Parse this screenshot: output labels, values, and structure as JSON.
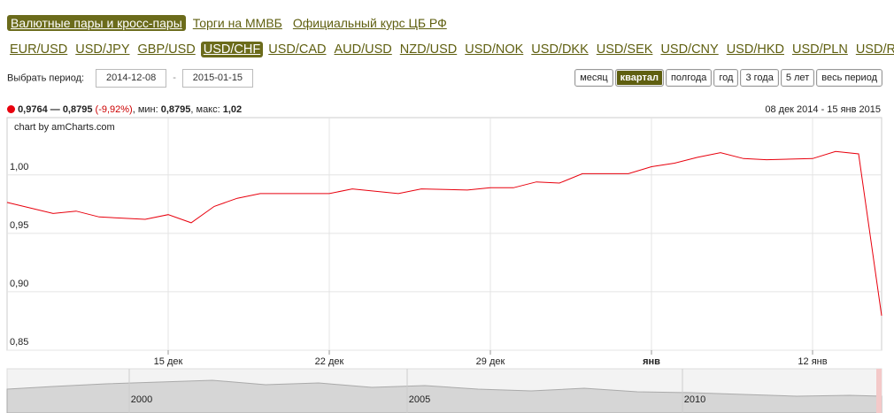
{
  "tabs": {
    "items": [
      "Валютные пары и кросс-пары",
      "Торги на ММВБ",
      "Официальный курс ЦБ РФ"
    ],
    "active": 0
  },
  "pairs": {
    "items": [
      "EUR/USD",
      "USD/JPY",
      "GBP/USD",
      "USD/CHF",
      "USD/CAD",
      "AUD/USD",
      "NZD/USD",
      "USD/NOK",
      "USD/DKK",
      "USD/SEK",
      "USD/CNY",
      "USD/HKD",
      "USD/PLN",
      "USD/RUR"
    ],
    "active": 3
  },
  "period": {
    "label": "Выбрать период:",
    "from": "2014-12-08",
    "separator": "-",
    "to": "2015-01-15"
  },
  "ranges": {
    "items": [
      "месяц",
      "квартал",
      "полгода",
      "год",
      "3 года",
      "5 лет",
      "весь период"
    ],
    "active": 1
  },
  "summary": {
    "range": "0,9764 — 0,8795",
    "change": "(-9,92%)",
    "min_label": ", мин:",
    "min": "0,8795",
    "max_label": ", макс:",
    "max": "1,02",
    "dates": "08 дек 2014 - 15 янв 2015"
  },
  "chart_data": {
    "type": "line",
    "credit": "chart by amCharts.com",
    "color": "#e8000d",
    "grid": true,
    "x": [
      "2014-12-08",
      "2014-12-10",
      "2014-12-11",
      "2014-12-12",
      "2014-12-14",
      "2014-12-15",
      "2014-12-16",
      "2014-12-17",
      "2014-12-18",
      "2014-12-19",
      "2014-12-22",
      "2014-12-23",
      "2014-12-25",
      "2014-12-26",
      "2014-12-28",
      "2014-12-29",
      "2014-12-30",
      "2014-12-31",
      "2015-01-01",
      "2015-01-02",
      "2015-01-04",
      "2015-01-05",
      "2015-01-06",
      "2015-01-07",
      "2015-01-08",
      "2015-01-09",
      "2015-01-10",
      "2015-01-12",
      "2015-01-13",
      "2015-01-14",
      "2015-01-15"
    ],
    "values": [
      0.9764,
      0.967,
      0.969,
      0.964,
      0.962,
      0.966,
      0.959,
      0.973,
      0.98,
      0.984,
      0.984,
      0.988,
      0.984,
      0.988,
      0.987,
      0.989,
      0.989,
      0.994,
      0.993,
      1.001,
      1.001,
      1.007,
      1.01,
      1.015,
      1.019,
      1.014,
      1.013,
      1.014,
      1.02,
      1.018,
      0.8795
    ],
    "xlim": [
      "2014-12-08",
      "2015-01-15"
    ],
    "xticks": [
      {
        "value": "2014-12-15",
        "label": "15 дек"
      },
      {
        "value": "2014-12-22",
        "label": "22 дек"
      },
      {
        "value": "2014-12-29",
        "label": "29 дек"
      },
      {
        "value": "2015-01-05",
        "label": "янв"
      },
      {
        "value": "2015-01-12",
        "label": "12 янв"
      }
    ],
    "ylim": [
      0.85,
      1.049
    ],
    "yticks": [
      {
        "value": 0.85,
        "label": "0,85"
      },
      {
        "value": 0.9,
        "label": "0,90"
      },
      {
        "value": 0.95,
        "label": "0,95"
      },
      {
        "value": 1.0,
        "label": "1,00"
      }
    ],
    "navigator_labels": [
      "2000",
      "2005",
      "2010"
    ]
  }
}
